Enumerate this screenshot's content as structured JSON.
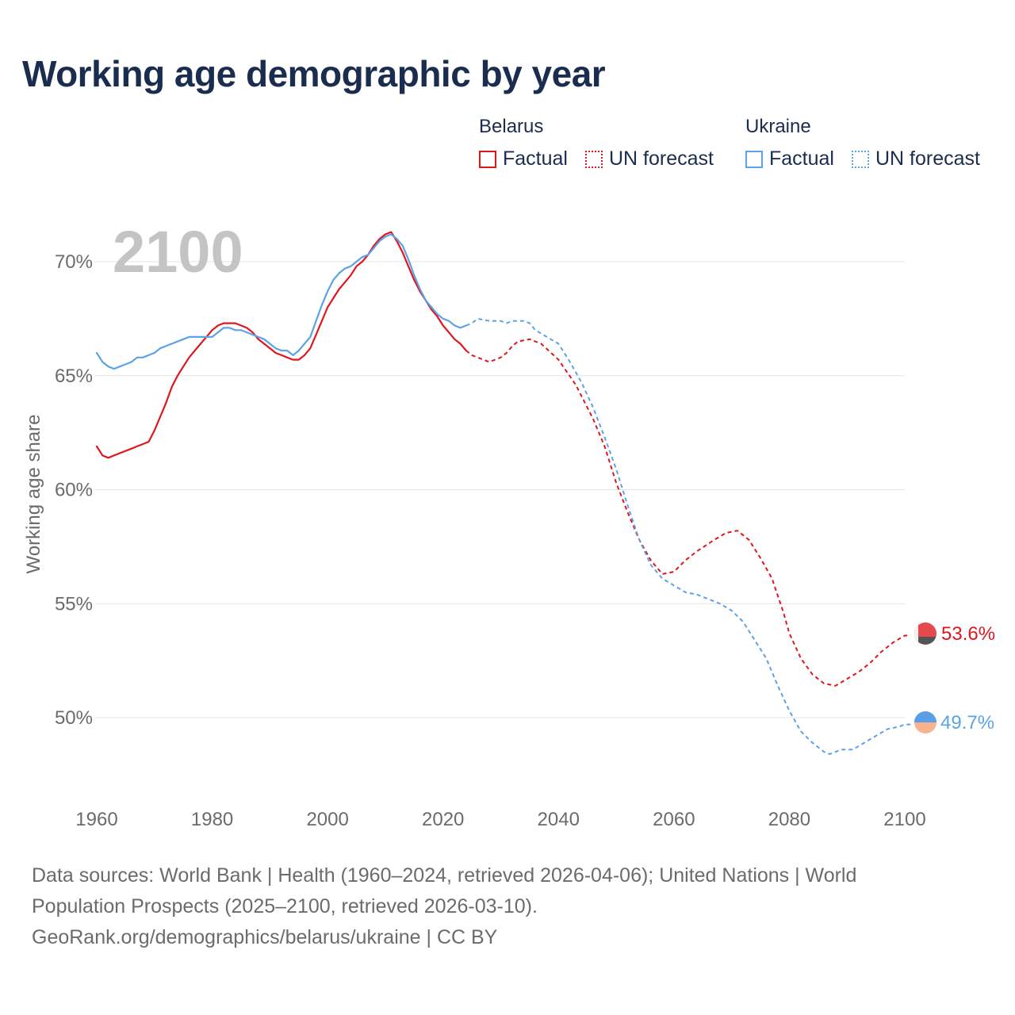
{
  "title": "Working age demographic by year",
  "legend": {
    "groups": [
      {
        "country": "Belarus",
        "factual_label": "Factual",
        "forecast_label": "UN forecast",
        "color": "#e0161f"
      },
      {
        "country": "Ukraine",
        "factual_label": "Factual",
        "forecast_label": "UN forecast",
        "color": "#5ba3e6"
      }
    ]
  },
  "year_overlay": "2100",
  "end_labels": {
    "belarus": "53.6%",
    "ukraine": "49.7%"
  },
  "sources": {
    "line1": "Data sources: World Bank | Health (1960–2024, retrieved 2026-04-06); United Nations | World",
    "line2": "Population Prospects (2025–2100, retrieved 2026-03-10).",
    "line3": "GeoRank.org/demographics/belarus/ukraine | CC BY"
  },
  "chart_data": {
    "type": "line",
    "title": "Working age demographic by year",
    "xlabel": "",
    "ylabel": "Working age share",
    "xlim": [
      1960,
      2100
    ],
    "ylim": [
      47,
      73
    ],
    "x_ticks": [
      "1960",
      "1980",
      "2000",
      "2020",
      "2040",
      "2060",
      "2080",
      "2100"
    ],
    "y_ticks": [
      {
        "value": 50,
        "label": "50%"
      },
      {
        "value": 55,
        "label": "55%"
      },
      {
        "value": 60,
        "label": "60%"
      },
      {
        "value": 65,
        "label": "65%"
      },
      {
        "value": 70,
        "label": "70%"
      }
    ],
    "grid": true,
    "series": [
      {
        "name": "Belarus",
        "kind": "Factual",
        "color": "#e0161f",
        "style": "solid",
        "points": [
          [
            1960,
            61.9
          ],
          [
            1961,
            61.5
          ],
          [
            1962,
            61.4
          ],
          [
            1963,
            61.5
          ],
          [
            1964,
            61.6
          ],
          [
            1965,
            61.7
          ],
          [
            1966,
            61.8
          ],
          [
            1967,
            61.9
          ],
          [
            1968,
            62.0
          ],
          [
            1969,
            62.1
          ],
          [
            1970,
            62.6
          ],
          [
            1971,
            63.2
          ],
          [
            1972,
            63.8
          ],
          [
            1973,
            64.5
          ],
          [
            1974,
            65.0
          ],
          [
            1975,
            65.4
          ],
          [
            1976,
            65.8
          ],
          [
            1977,
            66.1
          ],
          [
            1978,
            66.4
          ],
          [
            1979,
            66.7
          ],
          [
            1980,
            67.0
          ],
          [
            1981,
            67.2
          ],
          [
            1982,
            67.3
          ],
          [
            1983,
            67.3
          ],
          [
            1984,
            67.3
          ],
          [
            1985,
            67.2
          ],
          [
            1986,
            67.1
          ],
          [
            1987,
            66.9
          ],
          [
            1988,
            66.6
          ],
          [
            1989,
            66.4
          ],
          [
            1990,
            66.2
          ],
          [
            1991,
            66.0
          ],
          [
            1992,
            65.9
          ],
          [
            1993,
            65.8
          ],
          [
            1994,
            65.7
          ],
          [
            1995,
            65.7
          ],
          [
            1996,
            65.9
          ],
          [
            1997,
            66.2
          ],
          [
            1998,
            66.8
          ],
          [
            1999,
            67.4
          ],
          [
            2000,
            68.0
          ],
          [
            2001,
            68.4
          ],
          [
            2002,
            68.8
          ],
          [
            2003,
            69.1
          ],
          [
            2004,
            69.4
          ],
          [
            2005,
            69.8
          ],
          [
            2006,
            70.0
          ],
          [
            2007,
            70.3
          ],
          [
            2008,
            70.7
          ],
          [
            2009,
            71.0
          ],
          [
            2010,
            71.2
          ],
          [
            2011,
            71.3
          ],
          [
            2012,
            70.9
          ],
          [
            2013,
            70.4
          ],
          [
            2014,
            69.8
          ],
          [
            2015,
            69.2
          ],
          [
            2016,
            68.7
          ],
          [
            2017,
            68.3
          ],
          [
            2018,
            67.9
          ],
          [
            2019,
            67.6
          ],
          [
            2020,
            67.2
          ],
          [
            2021,
            66.9
          ],
          [
            2022,
            66.6
          ],
          [
            2023,
            66.4
          ],
          [
            2024,
            66.1
          ]
        ]
      },
      {
        "name": "Belarus",
        "kind": "UN forecast",
        "color": "#e0161f",
        "style": "dashed",
        "points": [
          [
            2024,
            66.1
          ],
          [
            2025,
            65.9
          ],
          [
            2026,
            65.8
          ],
          [
            2027,
            65.7
          ],
          [
            2028,
            65.6
          ],
          [
            2030,
            65.8
          ],
          [
            2031,
            66.0
          ],
          [
            2032,
            66.3
          ],
          [
            2033,
            66.5
          ],
          [
            2035,
            66.6
          ],
          [
            2037,
            66.4
          ],
          [
            2040,
            65.7
          ],
          [
            2043,
            64.6
          ],
          [
            2046,
            63.1
          ],
          [
            2048,
            61.9
          ],
          [
            2050,
            60.3
          ],
          [
            2052,
            59.0
          ],
          [
            2054,
            57.8
          ],
          [
            2056,
            56.9
          ],
          [
            2058,
            56.3
          ],
          [
            2060,
            56.4
          ],
          [
            2062,
            56.9
          ],
          [
            2064,
            57.3
          ],
          [
            2067,
            57.8
          ],
          [
            2069,
            58.1
          ],
          [
            2071,
            58.2
          ],
          [
            2073,
            57.8
          ],
          [
            2075,
            57.0
          ],
          [
            2077,
            56.1
          ],
          [
            2079,
            54.6
          ],
          [
            2080,
            53.7
          ],
          [
            2082,
            52.6
          ],
          [
            2084,
            51.9
          ],
          [
            2086,
            51.5
          ],
          [
            2088,
            51.4
          ],
          [
            2090,
            51.7
          ],
          [
            2092,
            52.0
          ],
          [
            2094,
            52.4
          ],
          [
            2096,
            52.9
          ],
          [
            2098,
            53.3
          ],
          [
            2100,
            53.6
          ],
          [
            2101,
            53.6
          ]
        ]
      },
      {
        "name": "Ukraine",
        "kind": "Factual",
        "color": "#5ba3e6",
        "style": "solid",
        "points": [
          [
            1960,
            66.0
          ],
          [
            1961,
            65.6
          ],
          [
            1962,
            65.4
          ],
          [
            1963,
            65.3
          ],
          [
            1964,
            65.4
          ],
          [
            1965,
            65.5
          ],
          [
            1966,
            65.6
          ],
          [
            1967,
            65.8
          ],
          [
            1968,
            65.8
          ],
          [
            1969,
            65.9
          ],
          [
            1970,
            66.0
          ],
          [
            1971,
            66.2
          ],
          [
            1972,
            66.3
          ],
          [
            1973,
            66.4
          ],
          [
            1974,
            66.5
          ],
          [
            1975,
            66.6
          ],
          [
            1976,
            66.7
          ],
          [
            1977,
            66.7
          ],
          [
            1978,
            66.7
          ],
          [
            1979,
            66.7
          ],
          [
            1980,
            66.7
          ],
          [
            1981,
            66.9
          ],
          [
            1982,
            67.1
          ],
          [
            1983,
            67.1
          ],
          [
            1984,
            67.0
          ],
          [
            1985,
            67.0
          ],
          [
            1986,
            66.9
          ],
          [
            1987,
            66.8
          ],
          [
            1988,
            66.7
          ],
          [
            1989,
            66.6
          ],
          [
            1990,
            66.4
          ],
          [
            1991,
            66.2
          ],
          [
            1992,
            66.1
          ],
          [
            1993,
            66.1
          ],
          [
            1994,
            65.9
          ],
          [
            1995,
            66.1
          ],
          [
            1996,
            66.4
          ],
          [
            1997,
            66.7
          ],
          [
            1998,
            67.4
          ],
          [
            1999,
            68.1
          ],
          [
            2000,
            68.7
          ],
          [
            2001,
            69.2
          ],
          [
            2002,
            69.5
          ],
          [
            2003,
            69.7
          ],
          [
            2004,
            69.8
          ],
          [
            2005,
            70.0
          ],
          [
            2006,
            70.2
          ],
          [
            2007,
            70.3
          ],
          [
            2008,
            70.6
          ],
          [
            2009,
            70.9
          ],
          [
            2010,
            71.1
          ],
          [
            2011,
            71.2
          ],
          [
            2012,
            71.0
          ],
          [
            2013,
            70.7
          ],
          [
            2014,
            70.1
          ],
          [
            2015,
            69.4
          ],
          [
            2016,
            68.8
          ],
          [
            2017,
            68.3
          ],
          [
            2018,
            68.0
          ],
          [
            2019,
            67.7
          ],
          [
            2020,
            67.5
          ],
          [
            2021,
            67.4
          ],
          [
            2022,
            67.2
          ],
          [
            2023,
            67.1
          ],
          [
            2024,
            67.2
          ]
        ]
      },
      {
        "name": "Ukraine",
        "kind": "UN forecast",
        "color": "#5ba3e6",
        "style": "dashed",
        "points": [
          [
            2024,
            67.2
          ],
          [
            2025,
            67.3
          ],
          [
            2026,
            67.5
          ],
          [
            2028,
            67.4
          ],
          [
            2030,
            67.4
          ],
          [
            2031,
            67.3
          ],
          [
            2032,
            67.4
          ],
          [
            2034,
            67.4
          ],
          [
            2035,
            67.3
          ],
          [
            2036,
            67.0
          ],
          [
            2038,
            66.7
          ],
          [
            2040,
            66.4
          ],
          [
            2042,
            65.6
          ],
          [
            2044,
            64.7
          ],
          [
            2046,
            63.6
          ],
          [
            2048,
            62.3
          ],
          [
            2050,
            60.9
          ],
          [
            2052,
            59.3
          ],
          [
            2054,
            57.8
          ],
          [
            2056,
            56.7
          ],
          [
            2058,
            56.1
          ],
          [
            2060,
            55.8
          ],
          [
            2062,
            55.5
          ],
          [
            2064,
            55.4
          ],
          [
            2066,
            55.2
          ],
          [
            2068,
            55.0
          ],
          [
            2070,
            54.7
          ],
          [
            2072,
            54.2
          ],
          [
            2074,
            53.4
          ],
          [
            2076,
            52.6
          ],
          [
            2078,
            51.4
          ],
          [
            2080,
            50.3
          ],
          [
            2082,
            49.4
          ],
          [
            2084,
            48.9
          ],
          [
            2086,
            48.5
          ],
          [
            2087,
            48.4
          ],
          [
            2089,
            48.6
          ],
          [
            2091,
            48.6
          ],
          [
            2093,
            48.9
          ],
          [
            2095,
            49.2
          ],
          [
            2097,
            49.5
          ],
          [
            2099,
            49.6
          ],
          [
            2100,
            49.7
          ],
          [
            2101,
            49.7
          ]
        ]
      }
    ]
  }
}
